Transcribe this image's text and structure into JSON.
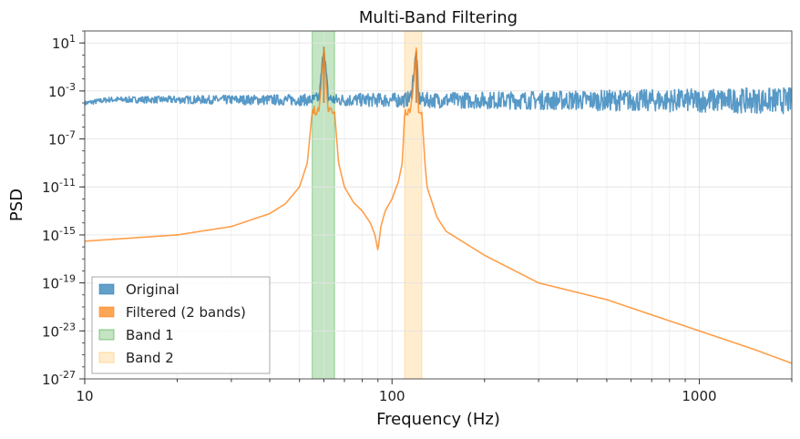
{
  "chart_data": {
    "type": "line",
    "title": "Multi-Band Filtering",
    "xlabel": "Frequency (Hz)",
    "ylabel": "PSD",
    "xscale": "log",
    "yscale": "log",
    "xlim": [
      10,
      2000
    ],
    "ylim": [
      1e-27,
      100
    ],
    "grid": true,
    "legend_position": "lower-left",
    "x_ticks": [
      {
        "value": 10,
        "label": "10"
      },
      {
        "value": 100,
        "label": "100"
      },
      {
        "value": 1000,
        "label": "1000"
      }
    ],
    "y_ticks": [
      {
        "value": 10,
        "label": "10^1"
      },
      {
        "value": 0.001,
        "label": "10^-3"
      },
      {
        "value": 1e-07,
        "label": "10^-7"
      },
      {
        "value": 1e-11,
        "label": "10^-11"
      },
      {
        "value": 1e-15,
        "label": "10^-15"
      },
      {
        "value": 1e-19,
        "label": "10^-19"
      },
      {
        "value": 1e-23,
        "label": "10^-23"
      },
      {
        "value": 1e-27,
        "label": "10^-27"
      }
    ],
    "bands": [
      {
        "name": "Band 1",
        "x_start": 55,
        "x_end": 65,
        "color": "#2ca02c"
      },
      {
        "name": "Band 2",
        "x_start": 110,
        "x_end": 125,
        "color": "#ffbf4f"
      }
    ],
    "series": [
      {
        "name": "Original",
        "color": "#1f77b4",
        "style": "noisy",
        "x": [
          10,
          12,
          15,
          20,
          25,
          30,
          35,
          40,
          45,
          50,
          55,
          58,
          60,
          62,
          65,
          70,
          80,
          90,
          100,
          110,
          115,
          120,
          122,
          125,
          130,
          150,
          200,
          300,
          500,
          700,
          1000,
          1500,
          2000
        ],
        "y": [
          0.0001,
          0.0002,
          0.0002,
          0.0002,
          0.0002,
          0.0002,
          0.0002,
          0.0002,
          0.0002,
          0.0002,
          0.0002,
          0.0003,
          5,
          0.0003,
          0.0002,
          0.0002,
          0.0002,
          0.0002,
          0.0002,
          0.0002,
          0.0003,
          2,
          0.0003,
          0.0002,
          0.0002,
          0.0002,
          0.0002,
          0.0002,
          0.0002,
          0.0002,
          0.0002,
          0.0002,
          0.0002
        ]
      },
      {
        "name": "Filtered (2 bands)",
        "color": "#ff7f0e",
        "style": "smooth",
        "x": [
          10,
          20,
          30,
          40,
          45,
          50,
          53,
          55,
          58,
          60,
          62,
          65,
          67,
          70,
          75,
          80,
          85,
          88,
          90,
          92,
          95,
          100,
          105,
          108,
          110,
          115,
          120,
          122,
          125,
          128,
          130,
          140,
          150,
          200,
          300,
          500,
          1000,
          1500,
          2000
        ],
        "y": [
          3e-16,
          1e-15,
          5e-15,
          6e-14,
          4e-13,
          1e-11,
          1e-09,
          2e-05,
          3e-05,
          5,
          3e-05,
          2e-05,
          1e-09,
          1e-11,
          5e-13,
          1e-13,
          1e-14,
          1e-15,
          5e-17,
          5e-15,
          1e-13,
          1e-12,
          3e-11,
          1e-09,
          2e-05,
          3e-05,
          2,
          3e-05,
          2e-05,
          1e-09,
          1e-11,
          3e-14,
          2e-15,
          2e-17,
          1e-19,
          4e-21,
          1e-23,
          3e-25,
          2e-26
        ]
      }
    ]
  }
}
